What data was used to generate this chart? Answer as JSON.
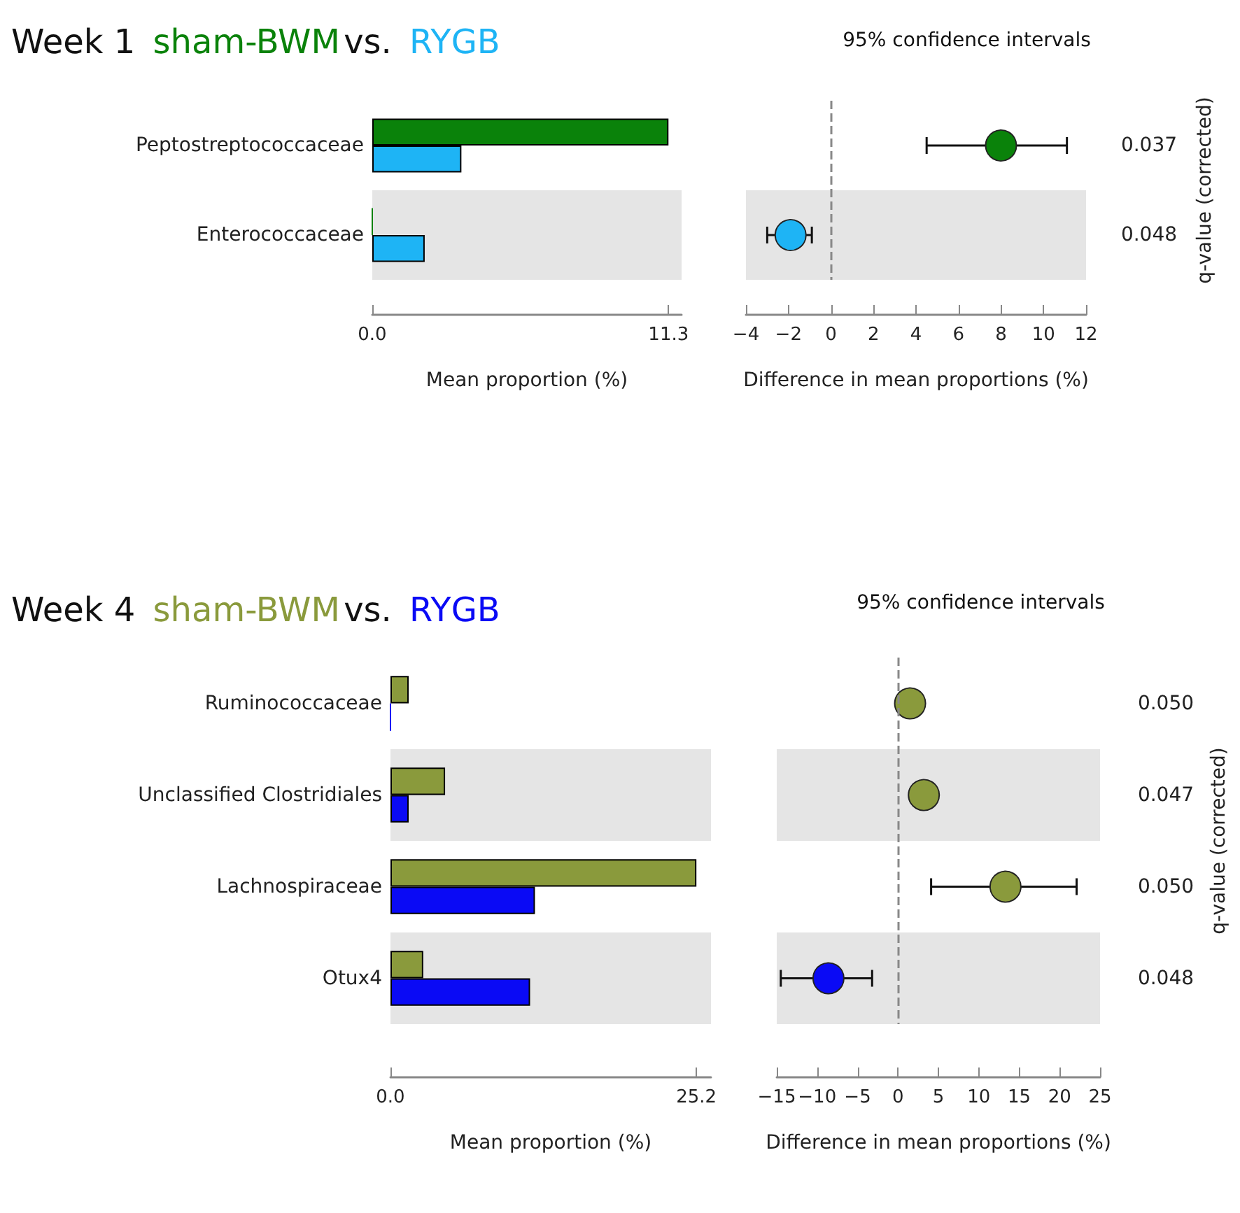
{
  "chart_data": [
    {
      "type": "bar",
      "orientation": "horizontal",
      "title": "Week 1",
      "annotations": [
        "vs."
      ],
      "xlabel": "Mean proportion (%)",
      "categories": [
        "Peptostreptococcaceae",
        "Enterococcaceae"
      ],
      "series": [
        {
          "name": "sham-BWM",
          "color": "#0a820a",
          "values": [
            11.3,
            0
          ]
        },
        {
          "name": "RYGB",
          "color": "#1eb4f5",
          "values": [
            3.4,
            2.0
          ]
        }
      ],
      "xlim": [
        0,
        11.8
      ],
      "xticks": [
        {
          "value": 0,
          "label": "0.0"
        },
        11.3
      ],
      "legend": "top left",
      "bands": [
        {
          "axis": "y",
          "from": "Enterococcaceae",
          "to": "Enterococcaceae",
          "color": "#e5e5e5"
        }
      ],
      "grid": false
    },
    {
      "type": "scatter",
      "orientation": "horizontal",
      "title": "95% confidence intervals",
      "xlabel": "Difference in mean proportions (%)",
      "y2label": "q-value (corrected)",
      "categories": [
        "Peptostreptococcaceae",
        "Enterococcaceae"
      ],
      "values": [
        8.0,
        -1.9
      ],
      "colors": [
        "#0a820a",
        "#1eb4f5"
      ],
      "errors": [
        [
          4.5,
          11.1
        ],
        [
          -3.0,
          -0.9
        ]
      ],
      "xlim": [
        -4,
        12
      ],
      "xticks": [
        {
          "value": -4,
          "label": "−4"
        },
        {
          "value": -2,
          "label": "−2"
        },
        0,
        2,
        4,
        6,
        8,
        10,
        12
      ],
      "ref_lines": [
        {
          "axis": "x",
          "value": 0,
          "color": "#888888",
          "line_style": "dashed"
        }
      ],
      "bands": [
        {
          "axis": "y",
          "from": "Enterococcaceae",
          "to": "Enterococcaceae",
          "color": "#e5e5e5"
        }
      ],
      "annotations": [
        "0.037",
        "0.048"
      ],
      "tick_labels": "x",
      "grid": false,
      "marker": "circle"
    },
    {
      "type": "bar",
      "orientation": "horizontal",
      "title": "Week 4",
      "annotations": [
        "vs."
      ],
      "xlabel": "Mean proportion (%)",
      "categories": [
        "Ruminococcaceae",
        "Unclassified Clostridiales",
        "Lachnospiraceae",
        "Otux4"
      ],
      "series": [
        {
          "name": "sham-BWM",
          "color": "#8a9a3c",
          "values": [
            1.5,
            4.5,
            25.2,
            2.7
          ]
        },
        {
          "name": "RYGB",
          "color": "#0a0af5",
          "values": [
            0,
            1.5,
            11.9,
            11.5
          ]
        }
      ],
      "xlim": [
        0,
        26.4
      ],
      "xticks": [
        {
          "value": 0,
          "label": "0.0"
        },
        25.2
      ],
      "legend": "top left",
      "bands": [
        {
          "axis": "y",
          "from": "Unclassified Clostridiales",
          "to": "Unclassified Clostridiales",
          "color": "#e5e5e5"
        },
        {
          "axis": "y",
          "from": "Otux4",
          "to": "Otux4",
          "color": "#e5e5e5"
        }
      ],
      "grid": false
    },
    {
      "type": "scatter",
      "orientation": "horizontal",
      "title": "95% confidence intervals",
      "xlabel": "Difference in mean proportions (%)",
      "y2label": "q-value (corrected)",
      "categories": [
        "Ruminococcaceae",
        "Unclassified Clostridiales",
        "Lachnospiraceae",
        "Otux4"
      ],
      "values": [
        1.5,
        3.2,
        13.3,
        -8.6
      ],
      "colors": [
        "#8a9a3c",
        "#8a9a3c",
        "#8a9a3c",
        "#0a0af5"
      ],
      "errors": [
        null,
        null,
        [
          4.1,
          22.1
        ],
        [
          -14.5,
          -3.2
        ]
      ],
      "xlim": [
        -15,
        25
      ],
      "xticks": [
        {
          "value": -15,
          "label": "−15"
        },
        {
          "value": -10,
          "label": "−10"
        },
        {
          "value": -5,
          "label": "−5"
        },
        0,
        5,
        10,
        15,
        20,
        25
      ],
      "ref_lines": [
        {
          "axis": "x",
          "value": 0,
          "color": "#888888",
          "line_style": "dashed"
        }
      ],
      "bands": [
        {
          "axis": "y",
          "from": "Unclassified Clostridiales",
          "to": "Unclassified Clostridiales",
          "color": "#e5e5e5"
        },
        {
          "axis": "y",
          "from": "Otux4",
          "to": "Otux4",
          "color": "#e5e5e5"
        }
      ],
      "annotations": [
        "0.050",
        "0.047",
        "0.050",
        "0.048"
      ],
      "tick_labels": "x",
      "grid": false,
      "marker": "circle"
    }
  ]
}
